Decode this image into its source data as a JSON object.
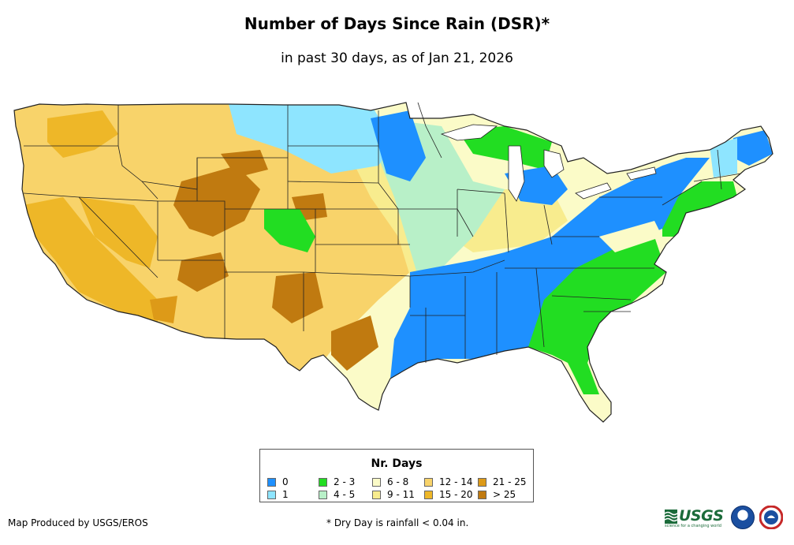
{
  "header": {
    "title": "Number of Days Since Rain (DSR)*",
    "subtitle": "in past 30 days, as of Jan 21, 2026"
  },
  "map": {
    "region": "Contiguous United States",
    "colors": {
      "0": "#1e90ff",
      "1": "#8ee5ff",
      "2-3": "#22dd22",
      "4-5": "#b8f0c8",
      "6-8": "#fbfbc8",
      "9-11": "#f8ec8e",
      "12-14": "#f8d36a",
      "15-20": "#eeb728",
      "21-25": "#dd9a18",
      "gt25": "#c07a10"
    }
  },
  "legend": {
    "title": "Nr. Days",
    "items": [
      {
        "label": "0",
        "color": "#1e90ff"
      },
      {
        "label": "1",
        "color": "#8ee5ff"
      },
      {
        "label": "2 - 3",
        "color": "#22dd22"
      },
      {
        "label": "4 - 5",
        "color": "#b8f0c8"
      },
      {
        "label": "6 - 8",
        "color": "#fbfbc8"
      },
      {
        "label": "9 - 11",
        "color": "#f8ec8e"
      },
      {
        "label": "12 - 14",
        "color": "#f8d36a"
      },
      {
        "label": "15 - 20",
        "color": "#eeb728"
      },
      {
        "label": "21 - 25",
        "color": "#dd9a18"
      },
      {
        "label": "> 25",
        "color": "#c07a10"
      }
    ]
  },
  "footer": {
    "credit": "Map Produced by USGS/EROS",
    "footnote": "* Dry Day is rainfall < 0.04 in.",
    "usgs_logo_text": "USGS",
    "usgs_tagline": "science for a changing world"
  }
}
